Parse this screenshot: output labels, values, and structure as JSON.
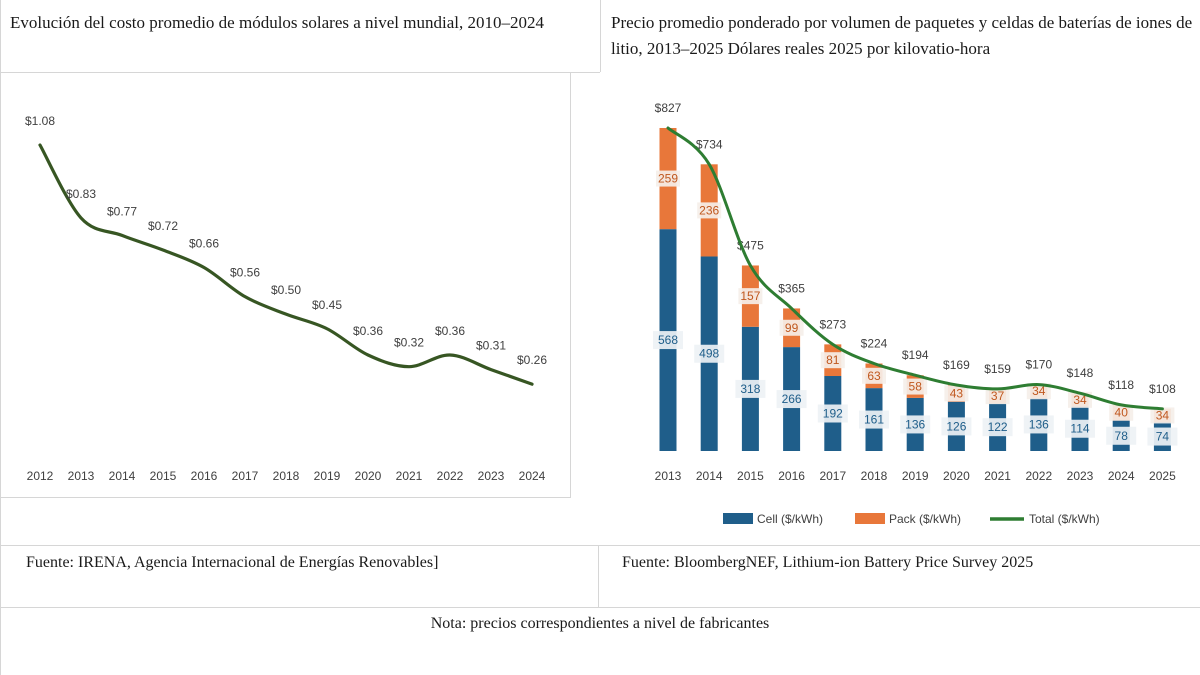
{
  "chart_data": [
    {
      "type": "line",
      "title": "Evolución del costo promedio de módulos solares a nivel mundial, 2010–2024",
      "x": [
        "2012",
        "2013",
        "2014",
        "2015",
        "2016",
        "2017",
        "2018",
        "2019",
        "2020",
        "2021",
        "2022",
        "2023",
        "2024"
      ],
      "series": [
        {
          "name": "Costo promedio",
          "values": [
            1.08,
            0.83,
            0.77,
            0.72,
            0.66,
            0.56,
            0.5,
            0.45,
            0.36,
            0.32,
            0.36,
            0.31,
            0.26
          ],
          "labels": [
            "$1.08",
            "$0.83",
            "$0.77",
            "$0.72",
            "$0.66",
            "$0.56",
            "$0.50",
            "$0.45",
            "$0.36",
            "$0.32",
            "$0.36",
            "$0.31",
            "$0.26"
          ]
        }
      ],
      "ylim": [
        0,
        1.2
      ],
      "color": "#375623"
    },
    {
      "type": "bar",
      "title": "Precio promedio ponderado por volumen de paquetes y celdas de baterías de iones de litio, 2013–2025 Dólares reales 2025 por kilovatio-hora",
      "categories": [
        "2013",
        "2014",
        "2015",
        "2016",
        "2017",
        "2018",
        "2019",
        "2020",
        "2021",
        "2022",
        "2023",
        "2024",
        "2025"
      ],
      "series": [
        {
          "name": "Cell ($/kWh)",
          "values": [
            568,
            498,
            318,
            266,
            192,
            161,
            136,
            126,
            122,
            136,
            114,
            78,
            74
          ],
          "color": "#1f5e8a"
        },
        {
          "name": "Pack ($/kWh)",
          "values": [
            259,
            236,
            157,
            99,
            81,
            63,
            58,
            43,
            37,
            34,
            34,
            40,
            34
          ],
          "color": "#e8773a"
        },
        {
          "name": "Total ($/kWh)",
          "values": [
            827,
            734,
            475,
            365,
            273,
            224,
            194,
            169,
            159,
            170,
            148,
            118,
            108
          ],
          "labels": [
            "$827",
            "$734",
            "$475",
            "$365",
            "$273",
            "$224",
            "$194",
            "$169",
            "$159",
            "$170",
            "$148",
            "$118",
            "$108"
          ],
          "color": "#2e7d32"
        }
      ],
      "ylim": [
        0,
        850
      ]
    }
  ],
  "source_left": "Fuente: IRENA, Agencia Internacional de Energías Renovables]",
  "source_right": "Fuente: BloombergNEF, Lithium-ion Battery Price Survey 2025",
  "note": "Nota: precios correspondientes a nivel de fabricantes"
}
